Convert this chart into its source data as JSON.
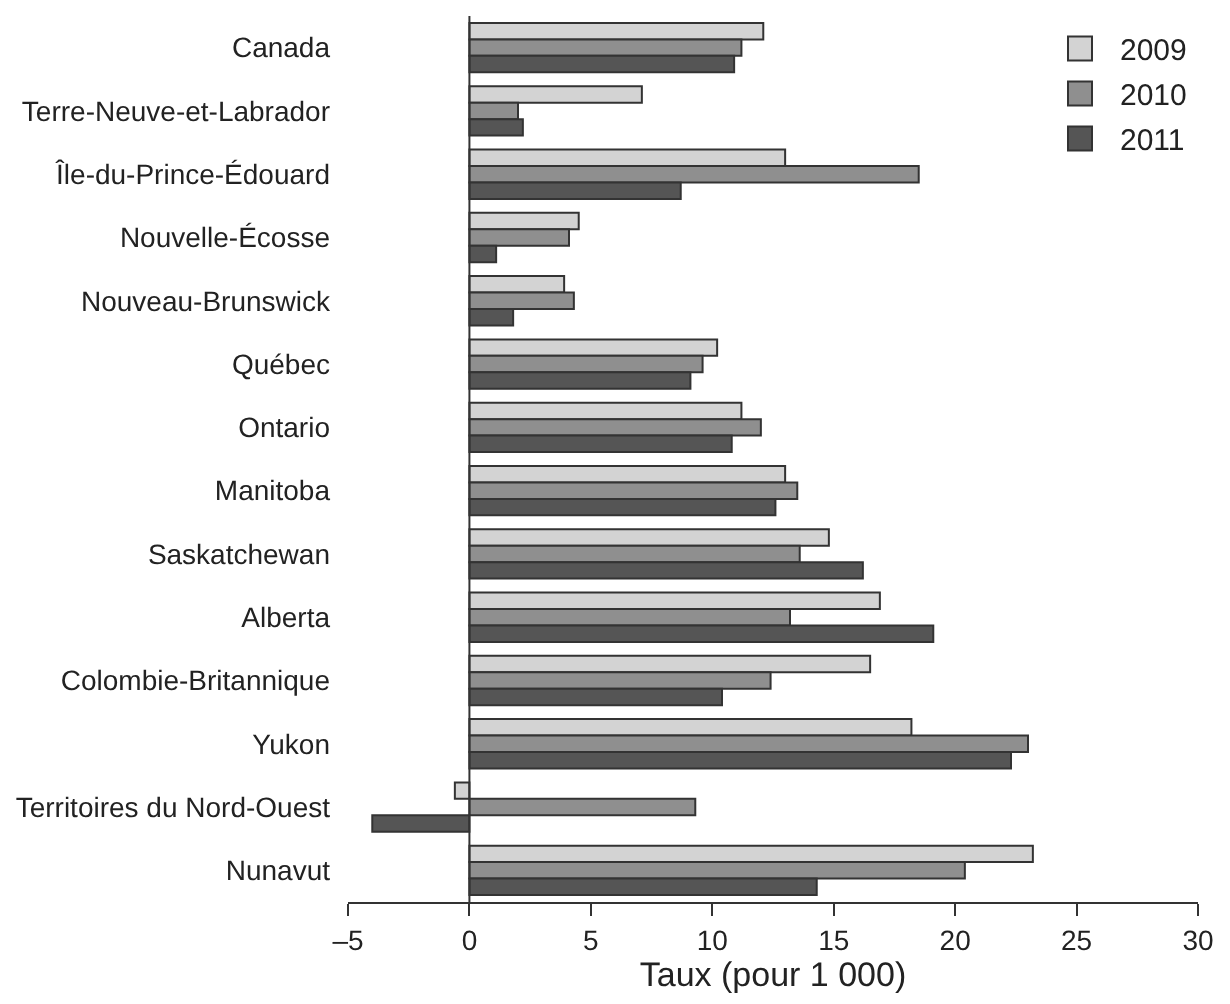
{
  "chart_data": {
    "type": "bar",
    "orientation": "horizontal",
    "xlabel": "Taux (pour 1 000)",
    "categories": [
      "Canada",
      "Terre-Neuve-et-Labrador",
      "Île-du-Prince-Édouard",
      "Nouvelle-Écosse",
      "Nouveau-Brunswick",
      "Québec",
      "Ontario",
      "Manitoba",
      "Saskatchewan",
      "Alberta",
      "Colombie-Britannique",
      "Yukon",
      "Territoires du Nord-Ouest",
      "Nunavut"
    ],
    "series": [
      {
        "name": "2009",
        "color": "#d3d3d3",
        "values": [
          12.1,
          7.1,
          13.0,
          4.5,
          3.9,
          10.2,
          11.2,
          13.0,
          14.8,
          16.9,
          16.5,
          18.2,
          -0.6,
          23.2
        ]
      },
      {
        "name": "2010",
        "color": "#8f8f8f",
        "values": [
          11.2,
          2.0,
          18.5,
          4.1,
          4.3,
          9.6,
          12.0,
          13.5,
          13.6,
          13.2,
          12.4,
          23.0,
          9.3,
          20.4
        ]
      },
      {
        "name": "2011",
        "color": "#555555",
        "values": [
          10.9,
          2.2,
          8.7,
          1.1,
          1.8,
          9.1,
          10.8,
          12.6,
          16.2,
          19.1,
          10.4,
          22.3,
          -4.0,
          14.3
        ]
      }
    ],
    "xlim": [
      -5,
      30
    ],
    "xticks": [
      {
        "value": -5,
        "label": "–5"
      },
      0,
      5,
      10,
      15,
      20,
      25,
      30
    ],
    "legend": "top right"
  }
}
